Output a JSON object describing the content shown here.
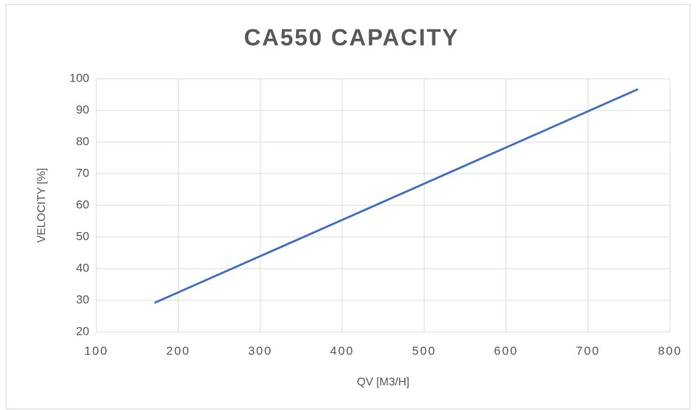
{
  "chart_data": {
    "type": "line",
    "title": "CA550 CAPACITY",
    "x_label": "QV [M3/H]",
    "y_label": "VELOCITY [%]",
    "x": [
      172,
      760
    ],
    "series": [
      {
        "name": "Velocity",
        "color": "#4472c4",
        "values": [
          29.3,
          96.6
        ]
      }
    ],
    "xlim": [
      100,
      800
    ],
    "xticks": [
      100,
      200,
      300,
      400,
      500,
      600,
      700,
      800
    ],
    "ylim": [
      20,
      100
    ],
    "yticks": [
      20,
      30,
      40,
      50,
      60,
      70,
      80,
      90,
      100
    ],
    "grid": true
  }
}
